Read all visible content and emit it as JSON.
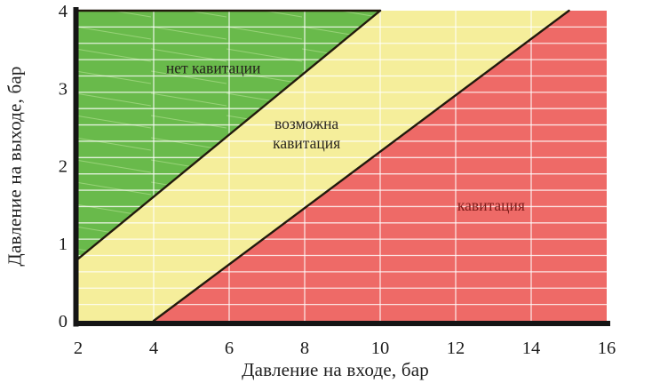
{
  "chart_data": {
    "type": "area",
    "title": "",
    "xlabel": "Давление на входе, бар",
    "ylabel": "Давление на выходе, бар",
    "xlim": [
      2,
      16
    ],
    "ylim": [
      0,
      4
    ],
    "x_ticks": [
      2,
      4,
      6,
      8,
      10,
      12,
      14,
      16
    ],
    "y_ticks": [
      0,
      1,
      2,
      3,
      4
    ],
    "grid": {
      "vertical_lines_x": [
        4,
        6,
        8,
        10,
        12,
        14
      ],
      "horizontal_stripe_count": 19,
      "gridline_color": "rgba(255,255,255,0.8)"
    },
    "regions": [
      {
        "name": "no-cavitation",
        "label": "нет кавитации",
        "label_lines": [
          "нет кавитации"
        ],
        "label_pos": [
          5.58,
          3.26
        ],
        "label_color": "#25221c",
        "color": "#69ba4b",
        "hatch": true,
        "points": [
          [
            2,
            4
          ],
          [
            10,
            4
          ],
          [
            2,
            0.8
          ]
        ]
      },
      {
        "name": "possible-cavitation",
        "label": "возможна кавитация",
        "label_lines": [
          "возможна",
          "кавитация"
        ],
        "label_pos": [
          8.05,
          2.42
        ],
        "label_color": "#2a261e",
        "color": "#f5ee9b",
        "hatch": false,
        "points": [
          [
            2,
            0.8
          ],
          [
            10,
            4
          ],
          [
            15,
            4
          ],
          [
            4,
            0
          ],
          [
            2,
            0
          ]
        ]
      },
      {
        "name": "cavitation",
        "label": "кавитация",
        "label_lines": [
          "кавитация"
        ],
        "label_pos": [
          12.94,
          1.49
        ],
        "label_color": "#7e1c1a",
        "color": "#ee6a67",
        "hatch": false,
        "points": [
          [
            4,
            0
          ],
          [
            15,
            4
          ],
          [
            16,
            4
          ],
          [
            16,
            0
          ]
        ]
      }
    ],
    "boundary_lines": [
      {
        "name": "green-top-border",
        "from": [
          2,
          4
        ],
        "to": [
          10,
          4
        ]
      },
      {
        "name": "no-cavitation-limit",
        "from": [
          2,
          0.8
        ],
        "to": [
          10,
          4
        ]
      },
      {
        "name": "cavitation-limit",
        "from": [
          4,
          0
        ],
        "to": [
          15,
          4
        ]
      }
    ],
    "line_color": "#221a0d",
    "axis_color": "#151515",
    "tick_color": "#1d1d1d"
  }
}
